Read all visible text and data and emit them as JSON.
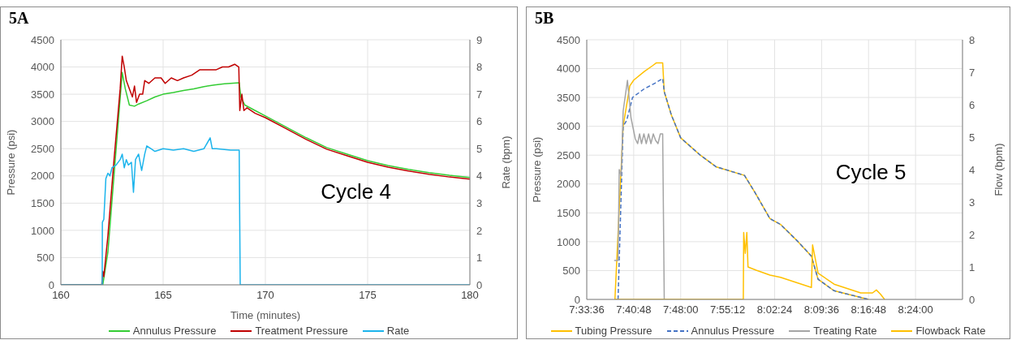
{
  "chart_data": [
    {
      "type": "line",
      "title": "5A",
      "xlabel": "Time (minutes)",
      "ylabel": "Pressure (psi)",
      "y2label": "Rate (bpm)",
      "annotations": [
        "Cycle 4"
      ],
      "xlim": [
        160,
        180
      ],
      "xticks": [
        160,
        165,
        170,
        175,
        180
      ],
      "ylim": [
        0,
        4500
      ],
      "yticks": [
        0,
        500,
        1000,
        1500,
        2000,
        2500,
        3000,
        3500,
        4000,
        4500
      ],
      "y2lim": [
        0,
        9
      ],
      "y2ticks": [
        0,
        1,
        2,
        3,
        4,
        5,
        6,
        7,
        8,
        9
      ],
      "grid": true,
      "legend": "bottom",
      "series": [
        {
          "name": "Annulus Pressure",
          "color": "#33cc33",
          "x": [
            160,
            162.05,
            162.3,
            163.0,
            163.15,
            163.35,
            163.6,
            163.8,
            164.2,
            164.6,
            165.0,
            165.5,
            166,
            166.5,
            167,
            167.5,
            168,
            168.72,
            168.8,
            169,
            169.5,
            170,
            171,
            172,
            173,
            174,
            175,
            176,
            177,
            178,
            179,
            180
          ],
          "values": [
            0,
            0,
            600,
            3900,
            3600,
            3300,
            3280,
            3320,
            3380,
            3450,
            3500,
            3530,
            3570,
            3600,
            3640,
            3670,
            3690,
            3710,
            3450,
            3300,
            3200,
            3100,
            2900,
            2700,
            2520,
            2400,
            2280,
            2190,
            2120,
            2060,
            2010,
            1970
          ]
        },
        {
          "name": "Treatment Pressure",
          "color": "#c00000",
          "x": [
            160,
            162.0,
            162.05,
            162.1,
            162.3,
            162.6,
            162.9,
            163.0,
            163.1,
            163.2,
            163.35,
            163.5,
            163.6,
            163.7,
            163.85,
            164.0,
            164.1,
            164.3,
            164.6,
            164.9,
            165.1,
            165.4,
            165.7,
            166.0,
            166.4,
            166.8,
            167.2,
            167.6,
            167.9,
            168.2,
            168.5,
            168.7,
            168.75,
            168.85,
            168.95,
            169.1,
            169.5,
            170,
            171,
            172,
            173,
            174,
            175,
            176,
            177,
            178,
            179,
            180
          ],
          "values": [
            0,
            0,
            250,
            150,
            900,
            2300,
            3600,
            4200,
            4000,
            3750,
            3600,
            3450,
            3650,
            3350,
            3500,
            3500,
            3750,
            3700,
            3800,
            3800,
            3700,
            3800,
            3750,
            3800,
            3850,
            3950,
            3950,
            3950,
            4000,
            4000,
            4050,
            4000,
            3200,
            3500,
            3200,
            3250,
            3150,
            3070,
            2870,
            2670,
            2490,
            2370,
            2250,
            2160,
            2090,
            2030,
            1980,
            1940
          ]
        },
        {
          "name": "Rate",
          "color": "#1cb4ec",
          "axis": "y2",
          "x": [
            160,
            162.02,
            162.03,
            162.1,
            162.2,
            162.3,
            162.4,
            162.5,
            162.7,
            162.9,
            163.0,
            163.1,
            163.2,
            163.3,
            163.45,
            163.55,
            163.65,
            163.8,
            163.95,
            164.1,
            164.2,
            164.4,
            164.6,
            165,
            165.5,
            166,
            166.5,
            167,
            167.3,
            167.4,
            167.6,
            168.3,
            168.72,
            168.77,
            180
          ],
          "values": [
            0,
            0,
            2.3,
            2.4,
            3.9,
            4.1,
            4.0,
            4.3,
            4.4,
            4.6,
            4.8,
            4.3,
            4.6,
            4.4,
            4.5,
            3.4,
            4.6,
            4.8,
            4.2,
            4.8,
            5.1,
            5.0,
            4.9,
            5.0,
            4.95,
            5.0,
            4.9,
            5.0,
            5.4,
            5.0,
            5.0,
            4.95,
            4.95,
            0,
            0
          ]
        }
      ]
    },
    {
      "type": "line",
      "title": "5B",
      "ylabel": "Pressure (psi)",
      "y2label": "Flow (bpm)",
      "annotations": [
        "Cycle 5"
      ],
      "xlim": [
        7.56,
        8.52
      ],
      "xticks": [
        {
          "value": 7.56,
          "label": "7:33:36"
        },
        {
          "value": 7.68,
          "label": "7:40:48"
        },
        {
          "value": 7.8,
          "label": "7:48:00"
        },
        {
          "value": 7.92,
          "label": "7:55:12"
        },
        {
          "value": 8.04,
          "label": "8:02:24"
        },
        {
          "value": 8.16,
          "label": "8:09:36"
        },
        {
          "value": 8.28,
          "label": "8:16:48"
        },
        {
          "value": 8.4,
          "label": "8:24:00"
        },
        {
          "value": 8.52,
          "label": null
        }
      ],
      "ylim": [
        0,
        4500
      ],
      "yticks": [
        0,
        500,
        1000,
        1500,
        2000,
        2500,
        3000,
        3500,
        4000,
        4500
      ],
      "y2lim": [
        0,
        8
      ],
      "y2ticks": [
        0,
        1,
        2,
        3,
        4,
        5,
        6,
        7,
        8
      ],
      "grid": true,
      "legend": "bottom",
      "series": [
        {
          "name": "Tubing Pressure",
          "color": "#ffc000",
          "x": [
            7.632,
            7.653,
            7.67,
            7.68,
            7.707,
            7.728,
            7.738,
            7.754,
            7.758,
            7.776,
            7.8,
            7.85,
            7.89,
            7.963,
            7.99,
            8.028,
            8.055,
            8.1,
            8.134,
            8.151,
            8.192,
            8.28
          ],
          "values": [
            0,
            3000,
            3700,
            3800,
            3950,
            4050,
            4100,
            4100,
            3600,
            3200,
            2800,
            2500,
            2300,
            2150,
            1850,
            1400,
            1300,
            1000,
            750,
            350,
            150,
            0
          ]
        },
        {
          "name": "Annulus Pressure",
          "color": "#4472c4",
          "line_style": "dashed",
          "x": [
            7.64,
            7.653,
            7.662,
            7.677,
            7.707,
            7.735,
            7.754,
            7.758,
            7.776,
            7.8,
            7.85,
            7.89,
            7.963,
            7.99,
            8.028,
            8.055,
            8.1,
            8.134,
            8.151,
            8.192,
            8.28
          ],
          "values": [
            0,
            3000,
            3100,
            3500,
            3650,
            3750,
            3830,
            3600,
            3200,
            2800,
            2500,
            2300,
            2150,
            1850,
            1400,
            1300,
            1000,
            750,
            350,
            150,
            0
          ]
        },
        {
          "name": "Treating Rate",
          "color": "#a5a5a5",
          "axis": "y2",
          "x": [
            7.63,
            7.64,
            7.643,
            7.648,
            7.653,
            7.664,
            7.673,
            7.684,
            7.69,
            7.695,
            7.7,
            7.706,
            7.712,
            7.718,
            7.724,
            7.73,
            7.736,
            7.742,
            7.748,
            7.754,
            7.758
          ],
          "values": [
            1.2,
            1.2,
            4.0,
            3.8,
            5.8,
            6.75,
            5.6,
            4.95,
            4.8,
            5.1,
            4.8,
            5.1,
            4.8,
            5.1,
            4.8,
            5.1,
            4.9,
            4.8,
            5.1,
            5.1,
            0
          ]
        },
        {
          "name": "Flowback Rate",
          "color": "#ffc000",
          "axis": "y2",
          "x": [
            7.632,
            7.96,
            7.961,
            7.965,
            7.969,
            7.972,
            7.993,
            8.028,
            8.055,
            8.134,
            8.137,
            8.151,
            8.192,
            8.26,
            8.29,
            8.3,
            8.31,
            8.321
          ],
          "values": [
            0,
            0,
            2.06,
            1.42,
            2.06,
            1.0,
            0.9,
            0.75,
            0.68,
            0.37,
            1.68,
            0.81,
            0.47,
            0.2,
            0.2,
            0.29,
            0.17,
            0
          ]
        }
      ]
    }
  ]
}
